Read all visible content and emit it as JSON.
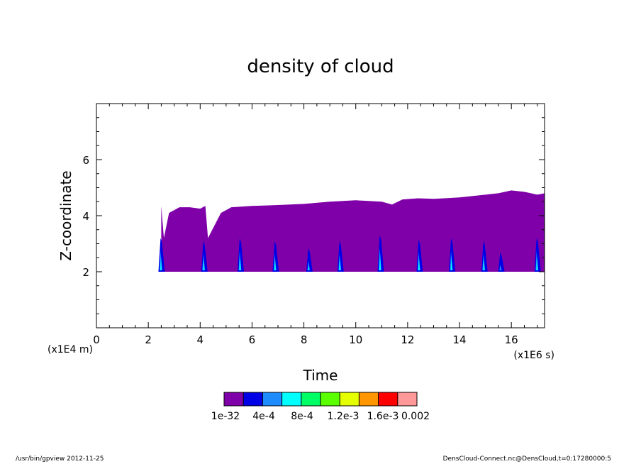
{
  "chart_data": {
    "type": "heatmap",
    "title": "density of cloud",
    "xlabel": "Time",
    "ylabel": "Z-coordinate",
    "x_scale_label": "(x1E6 s)",
    "y_scale_label": "(x1E4 m)",
    "xlim": [
      0,
      17.28
    ],
    "ylim": [
      0,
      8
    ],
    "x_ticks": [
      "0",
      "2",
      "4",
      "6",
      "8",
      "10",
      "12",
      "14",
      "16"
    ],
    "y_ticks": [
      "2",
      "4",
      "6"
    ],
    "cloud_base": 2.0,
    "cloud_start": 2.5,
    "cloud_top": [
      [
        2.5,
        4.35
      ],
      [
        2.6,
        3.2
      ],
      [
        2.8,
        4.1
      ],
      [
        3.2,
        4.3
      ],
      [
        3.6,
        4.3
      ],
      [
        4.0,
        4.25
      ],
      [
        4.2,
        4.35
      ],
      [
        4.3,
        3.2
      ],
      [
        4.8,
        4.1
      ],
      [
        5.2,
        4.3
      ],
      [
        6,
        4.35
      ],
      [
        7,
        4.38
      ],
      [
        8,
        4.42
      ],
      [
        9,
        4.5
      ],
      [
        10,
        4.55
      ],
      [
        11,
        4.5
      ],
      [
        11.4,
        4.4
      ],
      [
        11.8,
        4.58
      ],
      [
        12.4,
        4.62
      ],
      [
        13,
        4.6
      ],
      [
        14,
        4.65
      ],
      [
        15,
        4.75
      ],
      [
        15.5,
        4.8
      ],
      [
        16,
        4.9
      ],
      [
        16.5,
        4.85
      ],
      [
        17,
        4.75
      ],
      [
        17.28,
        4.8
      ]
    ],
    "peaks": [
      {
        "t": 2.5,
        "height": 3.2
      },
      {
        "t": 4.15,
        "height": 3.1
      },
      {
        "t": 5.55,
        "height": 3.2
      },
      {
        "t": 6.9,
        "height": 3.1
      },
      {
        "t": 8.2,
        "height": 2.85
      },
      {
        "t": 9.4,
        "height": 3.1
      },
      {
        "t": 10.95,
        "height": 3.3
      },
      {
        "t": 12.45,
        "height": 3.15
      },
      {
        "t": 13.7,
        "height": 3.2
      },
      {
        "t": 14.95,
        "height": 3.1
      },
      {
        "t": 15.6,
        "height": 2.7
      },
      {
        "t": 17.0,
        "height": 3.2
      }
    ],
    "colorbar": {
      "colors": [
        "#7f00a8",
        "#0000e6",
        "#1e8cff",
        "#00ffff",
        "#00ff64",
        "#5aff00",
        "#e6ff00",
        "#ff9600",
        "#ff0000",
        "#ff9898"
      ],
      "labels": [
        "1e-32",
        "4e-4",
        "8e-4",
        "1.2e-3",
        "1.6e-3",
        "0.002"
      ]
    }
  },
  "footer": {
    "left": "/usr/bin/gpview   2012-11-25",
    "right": "DensCloud-Connect.nc@DensCloud,t=0:17280000:5"
  }
}
